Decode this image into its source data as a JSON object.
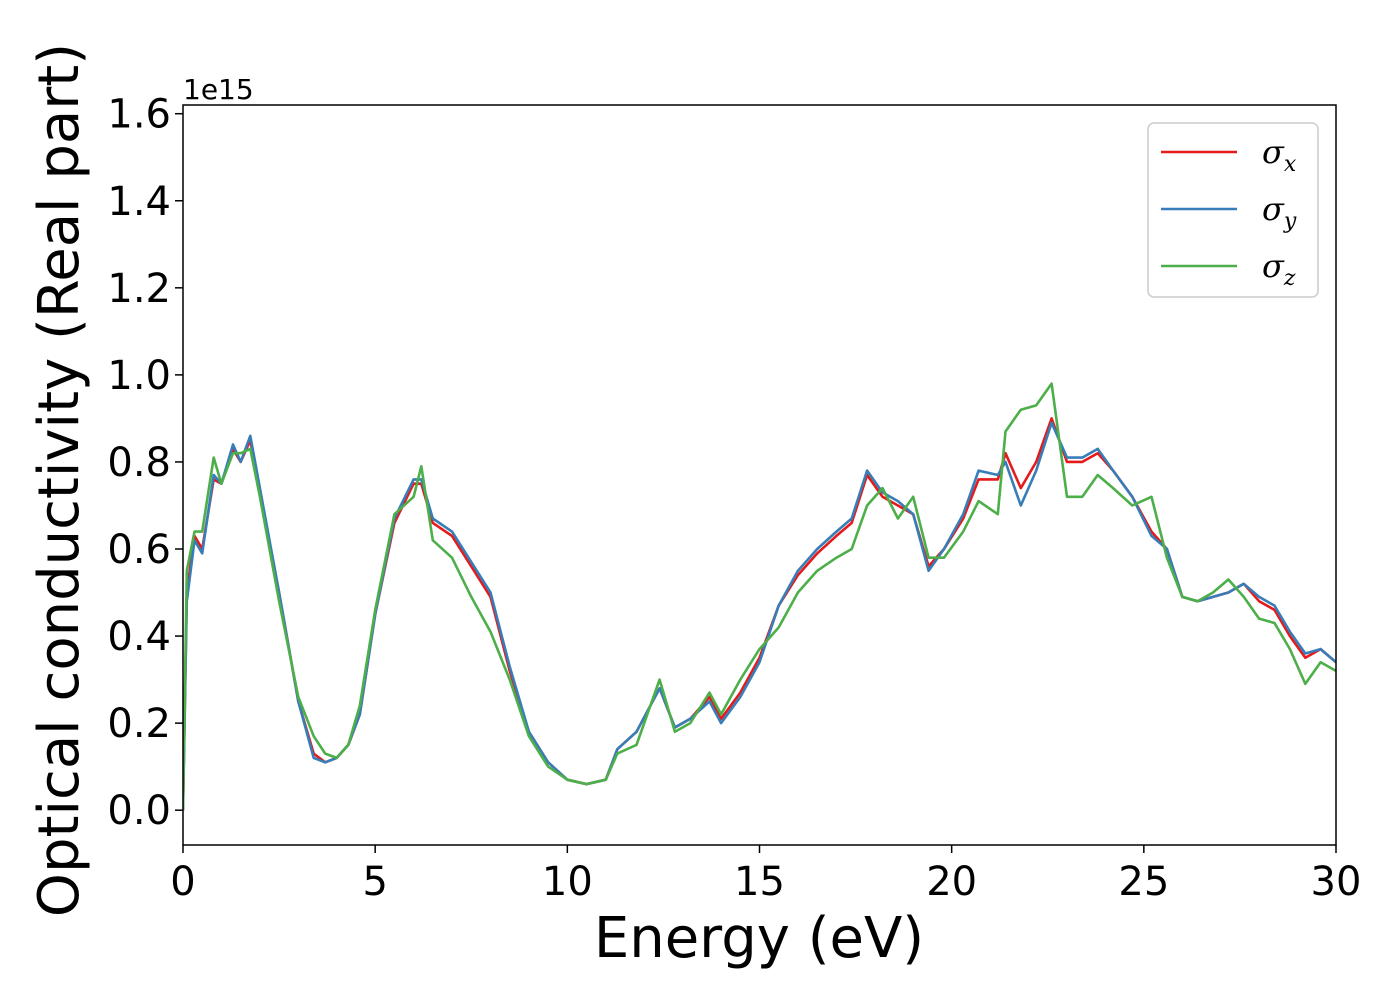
{
  "chart_data": {
    "type": "line",
    "xlabel": "Energy (eV)",
    "ylabel": "Optical conductivity (Real part)",
    "y_offset_label": "1e15",
    "xlim": [
      0,
      30
    ],
    "ylim": [
      -0.08,
      1.62
    ],
    "x_ticks": [
      0,
      5,
      10,
      15,
      20,
      25,
      30
    ],
    "x_tick_labels": [
      "0",
      "5",
      "10",
      "15",
      "20",
      "25",
      "30"
    ],
    "y_ticks": [
      0.0,
      0.2,
      0.4,
      0.6,
      0.8,
      1.0,
      1.2,
      1.4,
      1.6
    ],
    "y_tick_labels": [
      "0.0",
      "0.2",
      "0.4",
      "0.6",
      "0.8",
      "1.0",
      "1.2",
      "1.4",
      "1.6"
    ],
    "grid": false,
    "legend_position": "top-right",
    "series": [
      {
        "name": "σx",
        "legend_symbol": "σ",
        "legend_subscript": "x",
        "color": "#e41a1c",
        "points": [
          [
            0,
            0.0
          ],
          [
            0.1,
            0.5
          ],
          [
            0.3,
            0.63
          ],
          [
            0.5,
            0.6
          ],
          [
            0.8,
            0.76
          ],
          [
            1.0,
            0.75
          ],
          [
            1.3,
            0.83
          ],
          [
            1.5,
            0.8
          ],
          [
            1.75,
            0.85
          ],
          [
            2.0,
            0.73
          ],
          [
            2.5,
            0.5
          ],
          [
            3.0,
            0.25
          ],
          [
            3.4,
            0.13
          ],
          [
            3.7,
            0.11
          ],
          [
            4.0,
            0.12
          ],
          [
            4.3,
            0.15
          ],
          [
            4.6,
            0.22
          ],
          [
            5.0,
            0.45
          ],
          [
            5.5,
            0.66
          ],
          [
            6.0,
            0.75
          ],
          [
            6.2,
            0.75
          ],
          [
            6.5,
            0.66
          ],
          [
            7.0,
            0.63
          ],
          [
            7.5,
            0.56
          ],
          [
            8.0,
            0.49
          ],
          [
            8.5,
            0.32
          ],
          [
            9.0,
            0.18
          ],
          [
            9.5,
            0.11
          ],
          [
            10.0,
            0.07
          ],
          [
            10.5,
            0.06
          ],
          [
            11.0,
            0.07
          ],
          [
            11.3,
            0.14
          ],
          [
            11.8,
            0.18
          ],
          [
            12.4,
            0.28
          ],
          [
            12.8,
            0.19
          ],
          [
            13.2,
            0.21
          ],
          [
            13.7,
            0.26
          ],
          [
            14.0,
            0.21
          ],
          [
            14.5,
            0.27
          ],
          [
            15.0,
            0.35
          ],
          [
            15.5,
            0.47
          ],
          [
            16.0,
            0.54
          ],
          [
            16.5,
            0.59
          ],
          [
            17.0,
            0.63
          ],
          [
            17.4,
            0.66
          ],
          [
            17.8,
            0.77
          ],
          [
            18.2,
            0.72
          ],
          [
            18.6,
            0.7
          ],
          [
            19.0,
            0.68
          ],
          [
            19.4,
            0.56
          ],
          [
            19.8,
            0.6
          ],
          [
            20.3,
            0.67
          ],
          [
            20.7,
            0.76
          ],
          [
            21.2,
            0.76
          ],
          [
            21.4,
            0.82
          ],
          [
            21.8,
            0.74
          ],
          [
            22.2,
            0.8
          ],
          [
            22.6,
            0.9
          ],
          [
            23.0,
            0.8
          ],
          [
            23.4,
            0.8
          ],
          [
            23.8,
            0.82
          ],
          [
            24.2,
            0.78
          ],
          [
            24.7,
            0.72
          ],
          [
            25.2,
            0.64
          ],
          [
            25.6,
            0.6
          ],
          [
            26.0,
            0.49
          ],
          [
            26.4,
            0.48
          ],
          [
            26.8,
            0.49
          ],
          [
            27.2,
            0.5
          ],
          [
            27.6,
            0.52
          ],
          [
            28.0,
            0.48
          ],
          [
            28.4,
            0.46
          ],
          [
            28.8,
            0.4
          ],
          [
            29.2,
            0.35
          ],
          [
            29.6,
            0.37
          ],
          [
            30.0,
            0.34
          ]
        ]
      },
      {
        "name": "σy",
        "legend_symbol": "σ",
        "legend_subscript": "y",
        "color": "#377eb8",
        "points": [
          [
            0,
            0.0
          ],
          [
            0.1,
            0.48
          ],
          [
            0.3,
            0.62
          ],
          [
            0.5,
            0.59
          ],
          [
            0.8,
            0.77
          ],
          [
            1.0,
            0.75
          ],
          [
            1.3,
            0.84
          ],
          [
            1.5,
            0.8
          ],
          [
            1.75,
            0.86
          ],
          [
            2.0,
            0.74
          ],
          [
            2.5,
            0.5
          ],
          [
            3.0,
            0.25
          ],
          [
            3.4,
            0.12
          ],
          [
            3.7,
            0.11
          ],
          [
            4.0,
            0.12
          ],
          [
            4.3,
            0.15
          ],
          [
            4.6,
            0.22
          ],
          [
            5.0,
            0.45
          ],
          [
            5.5,
            0.67
          ],
          [
            6.0,
            0.76
          ],
          [
            6.2,
            0.76
          ],
          [
            6.5,
            0.67
          ],
          [
            7.0,
            0.64
          ],
          [
            7.5,
            0.57
          ],
          [
            8.0,
            0.5
          ],
          [
            8.5,
            0.33
          ],
          [
            9.0,
            0.18
          ],
          [
            9.5,
            0.11
          ],
          [
            10.0,
            0.07
          ],
          [
            10.5,
            0.06
          ],
          [
            11.0,
            0.07
          ],
          [
            11.3,
            0.14
          ],
          [
            11.8,
            0.18
          ],
          [
            12.4,
            0.28
          ],
          [
            12.8,
            0.19
          ],
          [
            13.2,
            0.21
          ],
          [
            13.7,
            0.25
          ],
          [
            14.0,
            0.2
          ],
          [
            14.5,
            0.26
          ],
          [
            15.0,
            0.34
          ],
          [
            15.5,
            0.47
          ],
          [
            16.0,
            0.55
          ],
          [
            16.5,
            0.6
          ],
          [
            17.0,
            0.64
          ],
          [
            17.4,
            0.67
          ],
          [
            17.8,
            0.78
          ],
          [
            18.2,
            0.73
          ],
          [
            18.6,
            0.71
          ],
          [
            19.0,
            0.68
          ],
          [
            19.4,
            0.55
          ],
          [
            19.8,
            0.6
          ],
          [
            20.3,
            0.68
          ],
          [
            20.7,
            0.78
          ],
          [
            21.2,
            0.77
          ],
          [
            21.4,
            0.8
          ],
          [
            21.8,
            0.7
          ],
          [
            22.2,
            0.78
          ],
          [
            22.6,
            0.89
          ],
          [
            23.0,
            0.81
          ],
          [
            23.4,
            0.81
          ],
          [
            23.8,
            0.83
          ],
          [
            24.2,
            0.78
          ],
          [
            24.7,
            0.72
          ],
          [
            25.2,
            0.63
          ],
          [
            25.6,
            0.6
          ],
          [
            26.0,
            0.49
          ],
          [
            26.4,
            0.48
          ],
          [
            26.8,
            0.49
          ],
          [
            27.2,
            0.5
          ],
          [
            27.6,
            0.52
          ],
          [
            28.0,
            0.49
          ],
          [
            28.4,
            0.47
          ],
          [
            28.8,
            0.41
          ],
          [
            29.2,
            0.36
          ],
          [
            29.6,
            0.37
          ],
          [
            30.0,
            0.34
          ]
        ]
      },
      {
        "name": "σz",
        "legend_symbol": "σ",
        "legend_subscript": "z",
        "color": "#4daf4a",
        "points": [
          [
            0,
            0.0
          ],
          [
            0.1,
            0.55
          ],
          [
            0.3,
            0.64
          ],
          [
            0.5,
            0.64
          ],
          [
            0.8,
            0.81
          ],
          [
            1.0,
            0.75
          ],
          [
            1.3,
            0.82
          ],
          [
            1.5,
            0.82
          ],
          [
            1.75,
            0.83
          ],
          [
            2.0,
            0.72
          ],
          [
            2.5,
            0.48
          ],
          [
            3.0,
            0.26
          ],
          [
            3.4,
            0.17
          ],
          [
            3.7,
            0.13
          ],
          [
            4.0,
            0.12
          ],
          [
            4.3,
            0.15
          ],
          [
            4.6,
            0.24
          ],
          [
            5.0,
            0.46
          ],
          [
            5.5,
            0.68
          ],
          [
            6.0,
            0.72
          ],
          [
            6.2,
            0.79
          ],
          [
            6.5,
            0.62
          ],
          [
            7.0,
            0.58
          ],
          [
            7.5,
            0.49
          ],
          [
            8.0,
            0.41
          ],
          [
            8.5,
            0.3
          ],
          [
            9.0,
            0.17
          ],
          [
            9.5,
            0.1
          ],
          [
            10.0,
            0.07
          ],
          [
            10.5,
            0.06
          ],
          [
            11.0,
            0.07
          ],
          [
            11.3,
            0.13
          ],
          [
            11.8,
            0.15
          ],
          [
            12.4,
            0.3
          ],
          [
            12.8,
            0.18
          ],
          [
            13.2,
            0.2
          ],
          [
            13.7,
            0.27
          ],
          [
            14.0,
            0.22
          ],
          [
            14.5,
            0.3
          ],
          [
            15.0,
            0.37
          ],
          [
            15.5,
            0.42
          ],
          [
            16.0,
            0.5
          ],
          [
            16.5,
            0.55
          ],
          [
            17.0,
            0.58
          ],
          [
            17.4,
            0.6
          ],
          [
            17.8,
            0.7
          ],
          [
            18.2,
            0.74
          ],
          [
            18.6,
            0.67
          ],
          [
            19.0,
            0.72
          ],
          [
            19.4,
            0.58
          ],
          [
            19.8,
            0.58
          ],
          [
            20.3,
            0.64
          ],
          [
            20.7,
            0.71
          ],
          [
            21.2,
            0.68
          ],
          [
            21.4,
            0.87
          ],
          [
            21.8,
            0.92
          ],
          [
            22.2,
            0.93
          ],
          [
            22.6,
            0.98
          ],
          [
            23.0,
            0.72
          ],
          [
            23.4,
            0.72
          ],
          [
            23.8,
            0.77
          ],
          [
            24.2,
            0.74
          ],
          [
            24.7,
            0.7
          ],
          [
            25.2,
            0.72
          ],
          [
            25.6,
            0.58
          ],
          [
            26.0,
            0.49
          ],
          [
            26.4,
            0.48
          ],
          [
            26.8,
            0.5
          ],
          [
            27.2,
            0.53
          ],
          [
            27.6,
            0.49
          ],
          [
            28.0,
            0.44
          ],
          [
            28.4,
            0.43
          ],
          [
            28.8,
            0.37
          ],
          [
            29.2,
            0.29
          ],
          [
            29.6,
            0.34
          ],
          [
            30.0,
            0.32
          ]
        ]
      }
    ]
  }
}
